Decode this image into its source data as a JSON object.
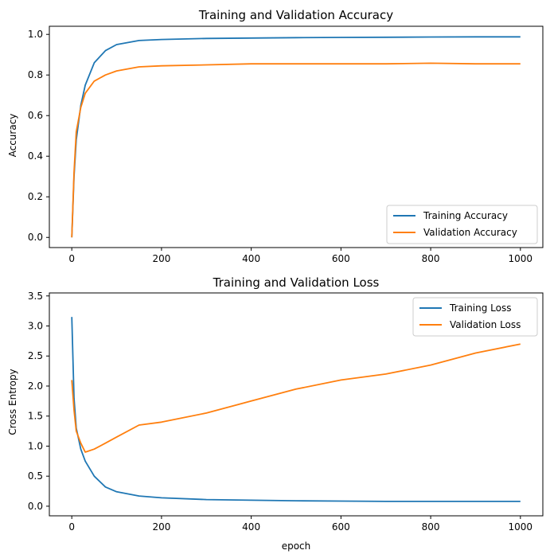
{
  "colors": {
    "training": "#1f77b4",
    "validation": "#ff7f0e"
  },
  "chart_data": [
    {
      "type": "line",
      "title": "Training and Validation Accuracy",
      "xlabel": "",
      "ylabel": "Accuracy",
      "xlim": [
        -50,
        1050
      ],
      "ylim": [
        -0.05,
        1.04
      ],
      "xticks": [
        0,
        200,
        400,
        600,
        800,
        1000
      ],
      "yticks": [
        0.0,
        0.2,
        0.4,
        0.6,
        0.8,
        1.0
      ],
      "ytick_labels": [
        "0.0",
        "0.2",
        "0.4",
        "0.6",
        "0.8",
        "1.0"
      ],
      "grid": false,
      "legend_position": "lower-right",
      "series": [
        {
          "name": "Training Accuracy",
          "color": "#1f77b4",
          "x": [
            0,
            5,
            10,
            20,
            30,
            50,
            75,
            100,
            150,
            200,
            300,
            400,
            500,
            600,
            700,
            800,
            900,
            1000
          ],
          "y": [
            0.0,
            0.3,
            0.48,
            0.65,
            0.75,
            0.86,
            0.92,
            0.95,
            0.97,
            0.975,
            0.98,
            0.982,
            0.984,
            0.985,
            0.986,
            0.987,
            0.988,
            0.988
          ]
        },
        {
          "name": "Validation Accuracy",
          "color": "#ff7f0e",
          "x": [
            0,
            5,
            10,
            20,
            30,
            50,
            75,
            100,
            150,
            200,
            300,
            400,
            500,
            600,
            700,
            800,
            900,
            1000
          ],
          "y": [
            0.0,
            0.32,
            0.52,
            0.64,
            0.71,
            0.77,
            0.8,
            0.82,
            0.84,
            0.845,
            0.85,
            0.855,
            0.855,
            0.855,
            0.855,
            0.858,
            0.855,
            0.855
          ]
        }
      ]
    },
    {
      "type": "line",
      "title": "Training and Validation Loss",
      "xlabel": "epoch",
      "ylabel": "Cross Entropy",
      "xlim": [
        -50,
        1050
      ],
      "ylim": [
        -0.16,
        3.55
      ],
      "xticks": [
        0,
        200,
        400,
        600,
        800,
        1000
      ],
      "yticks": [
        0.0,
        0.5,
        1.0,
        1.5,
        2.0,
        2.5,
        3.0,
        3.5
      ],
      "ytick_labels": [
        "0.0",
        "0.5",
        "1.0",
        "1.5",
        "2.0",
        "2.5",
        "3.0",
        "3.5"
      ],
      "grid": false,
      "legend_position": "upper-right",
      "series": [
        {
          "name": "Training Loss",
          "color": "#1f77b4",
          "x": [
            0,
            5,
            10,
            20,
            30,
            50,
            75,
            100,
            150,
            200,
            300,
            400,
            500,
            600,
            700,
            800,
            900,
            1000
          ],
          "y": [
            3.15,
            1.8,
            1.3,
            0.95,
            0.75,
            0.5,
            0.32,
            0.24,
            0.17,
            0.14,
            0.11,
            0.1,
            0.09,
            0.085,
            0.08,
            0.08,
            0.08,
            0.08
          ]
        },
        {
          "name": "Validation Loss",
          "color": "#ff7f0e",
          "x": [
            0,
            5,
            10,
            20,
            30,
            50,
            75,
            100,
            150,
            200,
            300,
            400,
            500,
            600,
            700,
            800,
            900,
            1000
          ],
          "y": [
            2.1,
            1.6,
            1.25,
            1.05,
            0.9,
            0.95,
            1.05,
            1.15,
            1.35,
            1.4,
            1.55,
            1.75,
            1.95,
            2.1,
            2.2,
            2.35,
            2.55,
            2.7
          ]
        }
      ]
    }
  ]
}
